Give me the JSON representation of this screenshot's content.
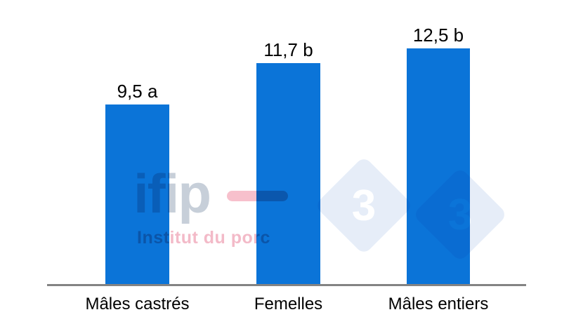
{
  "chart_data": {
    "type": "bar",
    "categories": [
      "Mâles castrés",
      "Femelles",
      "Mâles entiers"
    ],
    "values": [
      9.5,
      11.7,
      12.5
    ],
    "value_labels": [
      "9,5 a",
      "11,7 b",
      "12,5 b"
    ],
    "series_name": "",
    "title": "",
    "xlabel": "",
    "ylabel": "",
    "ylim": [
      0,
      15
    ],
    "grid": false,
    "legend": false,
    "bar_color": "#0b74d8",
    "axis_color": "#838383",
    "label_color": "#000000"
  },
  "watermarks": {
    "ifip": {
      "wordmark": "ifip",
      "subtitle": "Institut du porc",
      "wordmark_color": "#c7cfd9",
      "subtitle_color": "#f3bac8",
      "dash_color": "#f7c0cc"
    },
    "pig333": {
      "digits": [
        "3",
        "3"
      ],
      "diamond_color": "#e6edf8",
      "digit_color": "#ffffff"
    }
  }
}
